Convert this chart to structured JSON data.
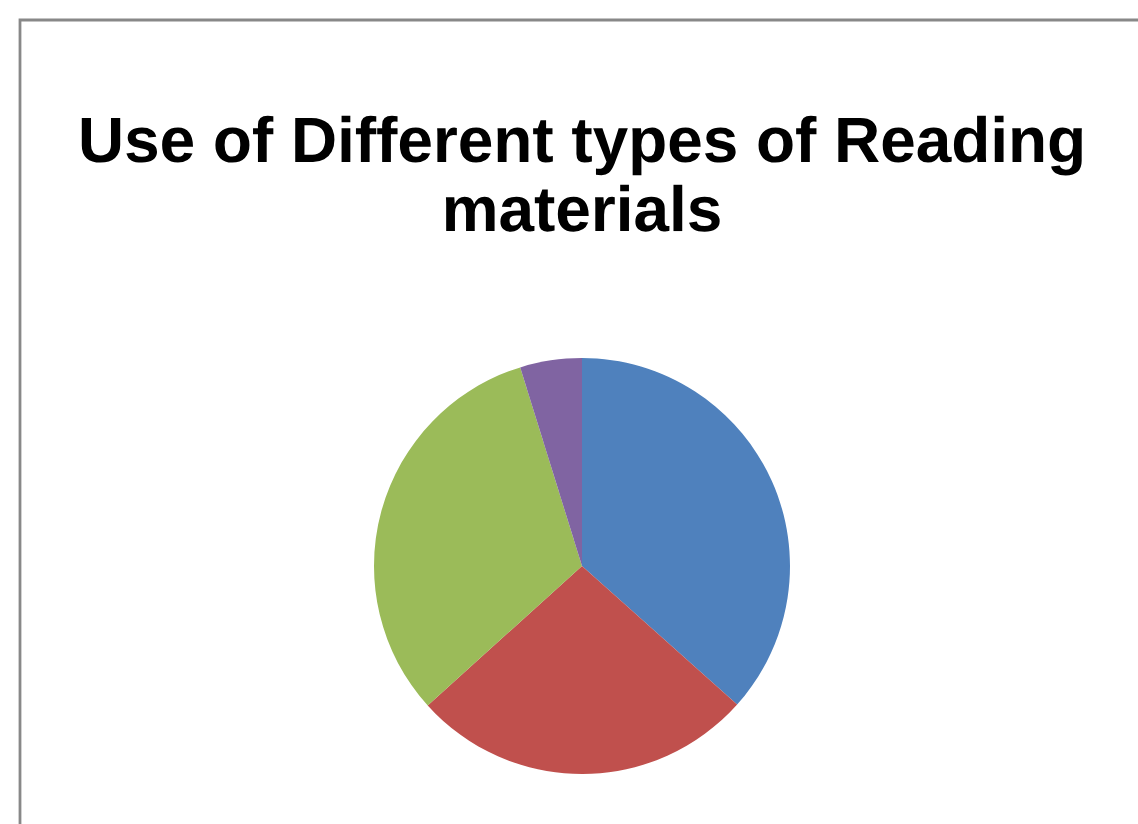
{
  "chart_data": {
    "type": "pie",
    "title": "Use of Different types of Reading materials",
    "categories": [
      null,
      null,
      null,
      null
    ],
    "values": [
      36.6,
      26.7,
      31.9,
      4.8
    ],
    "colors": [
      "#4f81bd",
      "#c0504d",
      "#9bbb59",
      "#8064a2"
    ]
  }
}
